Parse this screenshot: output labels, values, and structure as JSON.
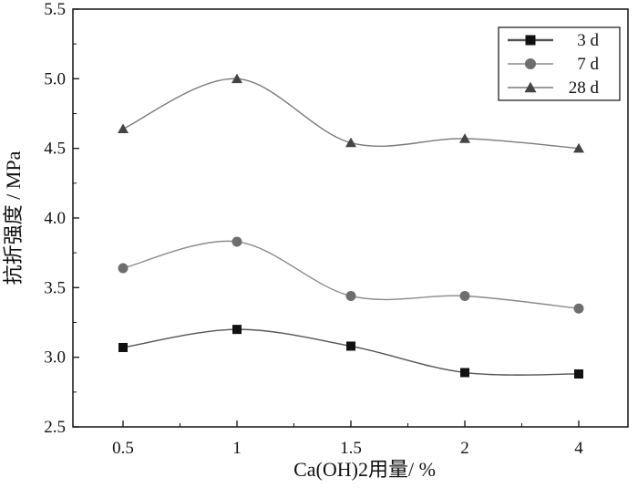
{
  "chart_data": {
    "type": "line",
    "categories": [
      "0.5",
      "1",
      "1.5",
      "2",
      "4"
    ],
    "xlabel": "Ca(OH)2用量/ %",
    "ylabel": "抗折强度 / MPa",
    "ylim": [
      2.5,
      5.5
    ],
    "yticks": [
      "2.5",
      "3.0",
      "3.5",
      "4.0",
      "4.5",
      "5.0",
      "5.5"
    ],
    "grid": false,
    "legend_position": "top-right",
    "series": [
      {
        "name": "3 d",
        "marker": "square",
        "color": "#111111",
        "line_color": "#555555",
        "values": [
          3.07,
          3.2,
          3.08,
          2.89,
          2.88
        ]
      },
      {
        "name": "7 d",
        "marker": "circle",
        "color": "#6e6e6e",
        "line_color": "#8a8a8a",
        "values": [
          3.64,
          3.83,
          3.44,
          3.44,
          3.35
        ]
      },
      {
        "name": "28 d",
        "marker": "triangle",
        "color": "#444444",
        "line_color": "#7a7a7a",
        "values": [
          4.64,
          5.0,
          4.54,
          4.57,
          4.5
        ]
      }
    ]
  }
}
